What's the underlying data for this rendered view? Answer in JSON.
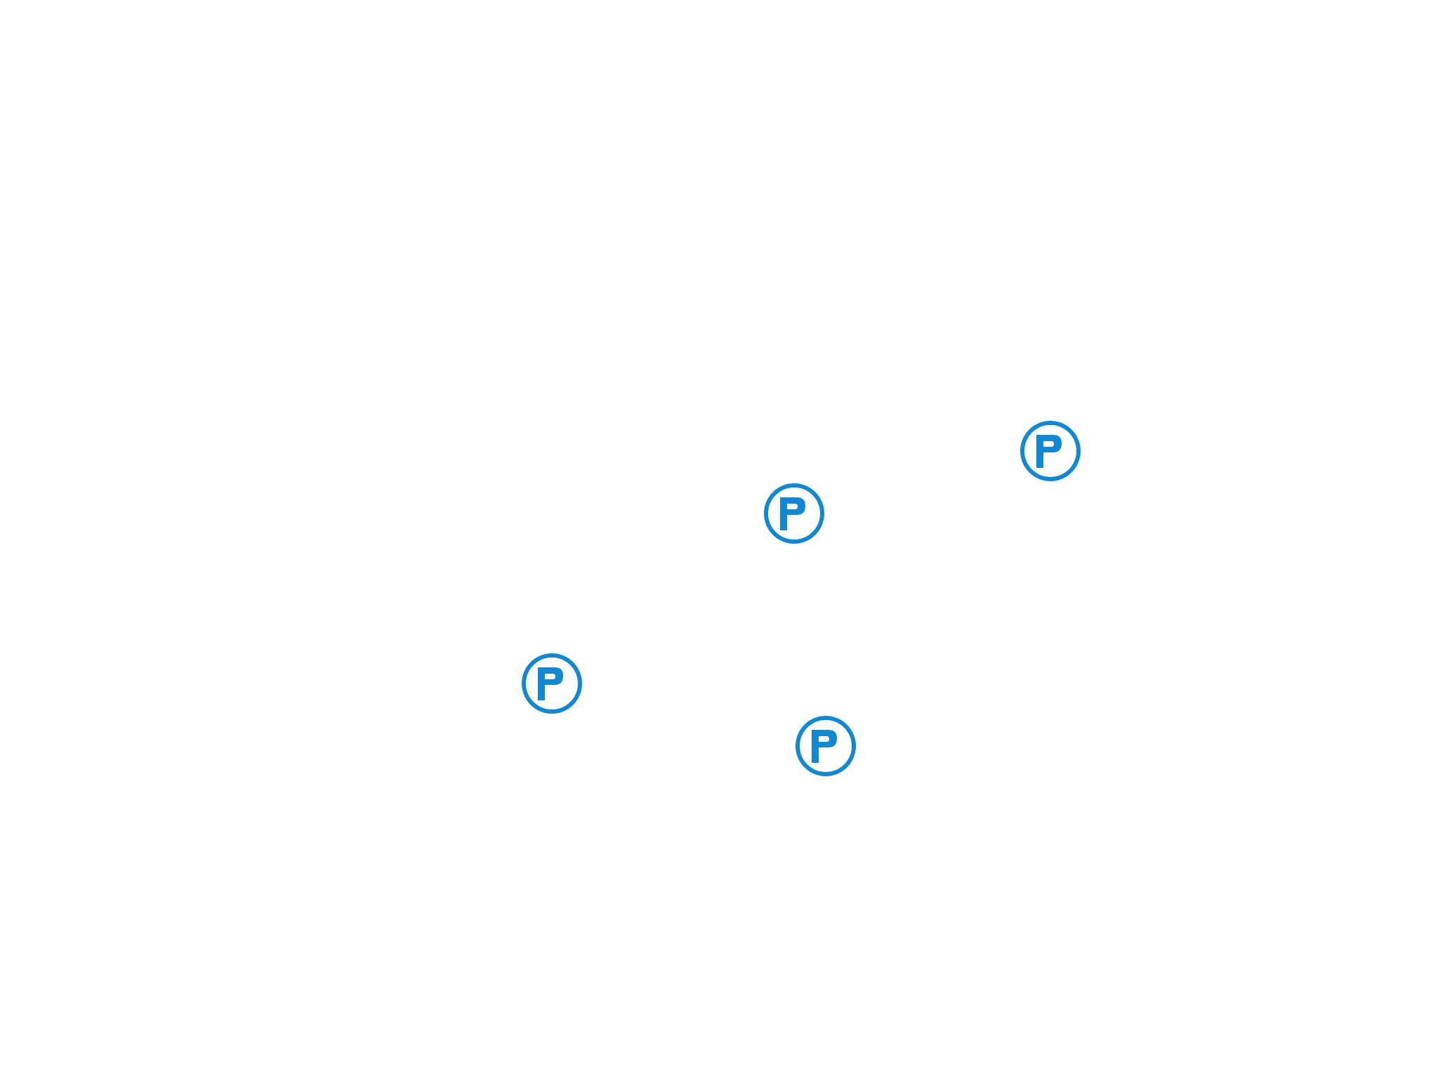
{
  "map": {
    "marker_color": "#1188d1",
    "background_color": "#ffffff",
    "markers": [
      {
        "icon": "parking-icon",
        "category": "parking"
      },
      {
        "icon": "parking-icon",
        "category": "parking"
      },
      {
        "icon": "parking-icon",
        "category": "parking"
      },
      {
        "icon": "parking-icon",
        "category": "parking"
      }
    ]
  }
}
